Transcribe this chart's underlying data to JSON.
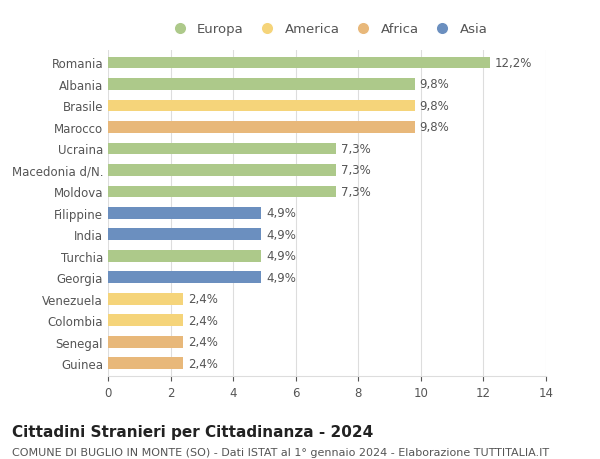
{
  "categories": [
    "Romania",
    "Albania",
    "Brasile",
    "Marocco",
    "Ucraina",
    "Macedonia d/N.",
    "Moldova",
    "Filippine",
    "India",
    "Turchia",
    "Georgia",
    "Venezuela",
    "Colombia",
    "Senegal",
    "Guinea"
  ],
  "values": [
    12.2,
    9.8,
    9.8,
    9.8,
    7.3,
    7.3,
    7.3,
    4.9,
    4.9,
    4.9,
    4.9,
    2.4,
    2.4,
    2.4,
    2.4
  ],
  "continents": [
    "Europa",
    "Europa",
    "America",
    "Africa",
    "Europa",
    "Europa",
    "Europa",
    "Asia",
    "Asia",
    "Europa",
    "Asia",
    "America",
    "America",
    "Africa",
    "Africa"
  ],
  "continent_colors": {
    "Europa": "#adc98a",
    "America": "#f5d47a",
    "Africa": "#e8b87a",
    "Asia": "#6b8fbf"
  },
  "legend_order": [
    "Europa",
    "America",
    "Africa",
    "Asia"
  ],
  "title": "Cittadini Stranieri per Cittadinanza - 2024",
  "subtitle": "COMUNE DI BUGLIO IN MONTE (SO) - Dati ISTAT al 1° gennaio 2024 - Elaborazione TUTTITALIA.IT",
  "xlim": [
    0,
    14
  ],
  "xticks": [
    0,
    2,
    4,
    6,
    8,
    10,
    12,
    14
  ],
  "background_color": "#ffffff",
  "bar_height": 0.55,
  "grid_color": "#dddddd",
  "title_fontsize": 11,
  "subtitle_fontsize": 8,
  "label_fontsize": 8.5,
  "tick_fontsize": 8.5,
  "legend_fontsize": 9.5,
  "text_color": "#555555",
  "title_color": "#222222"
}
